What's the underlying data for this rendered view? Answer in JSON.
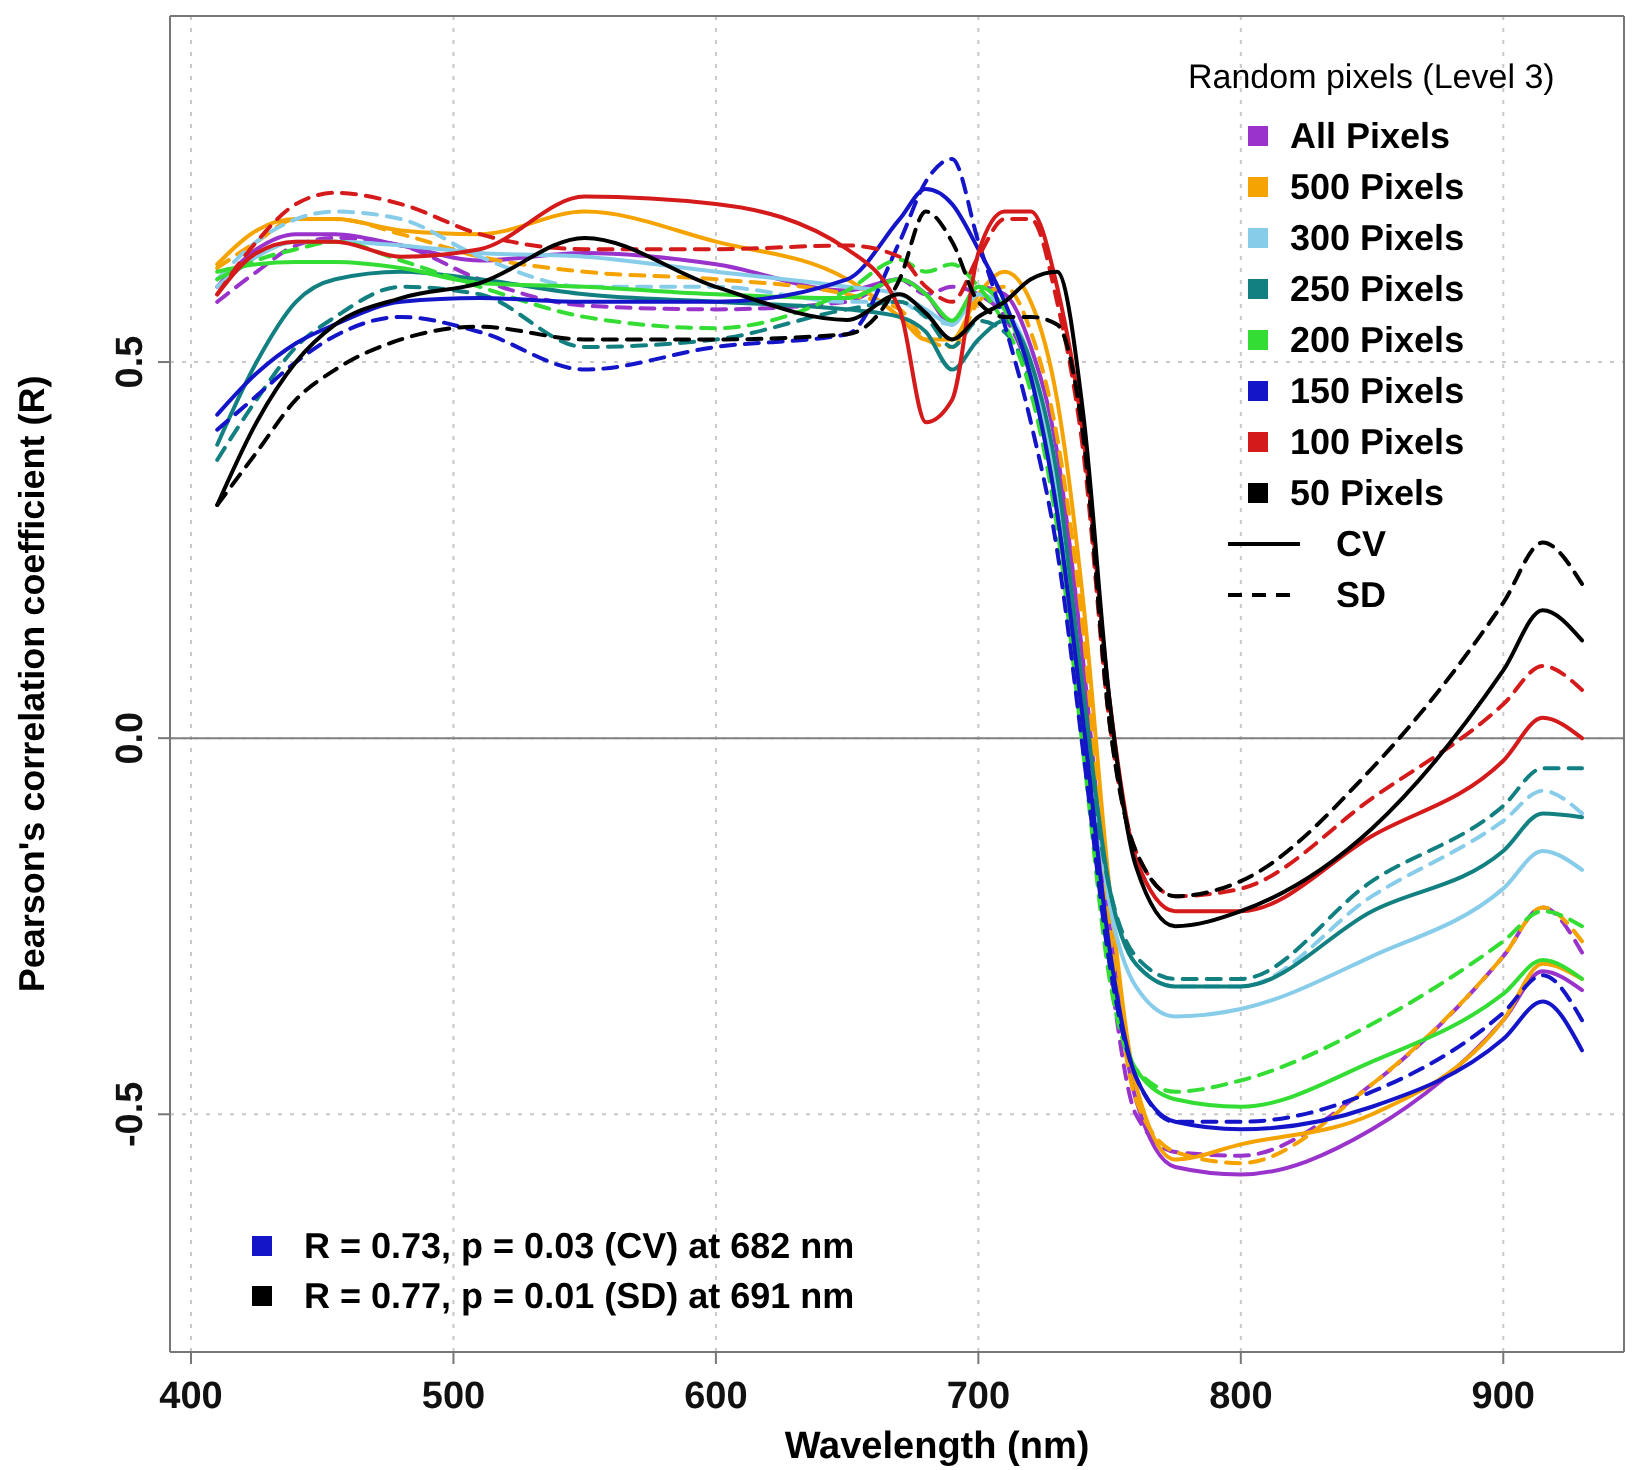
{
  "chart_data": {
    "type": "line",
    "xlabel": "Wavelength (nm)",
    "ylabel": "Pearson's correlation coefficient (R)",
    "legend_title": "Random pixels (Level 3)",
    "legend": "top right",
    "grid": true,
    "marker": "none",
    "xlim": [
      392,
      946
    ],
    "ylim": [
      -0.816,
      0.96
    ],
    "xticks": [
      400,
      500,
      600,
      700,
      800,
      900
    ],
    "yticks": [
      {
        "value": -0.5,
        "label": "-0.5"
      },
      {
        "value": 0,
        "label": "0.0"
      },
      {
        "value": 0.5,
        "label": "0.5"
      }
    ],
    "ref_lines": [
      {
        "axis": "y",
        "value": 0,
        "label": null,
        "color": "#808080",
        "line_style": "solid"
      }
    ],
    "annotations": [
      "CV",
      "SD",
      "R = 0.73, p = 0.03 (CV) at 682 nm",
      "R = 0.77, p = 0.01 (SD) at 691 nm"
    ],
    "x": [
      410,
      425,
      440,
      455,
      480,
      510,
      550,
      600,
      650,
      670,
      680,
      690,
      700,
      710,
      720,
      730,
      740,
      750,
      760,
      775,
      800,
      850,
      900,
      915,
      930
    ],
    "series": [
      {
        "name": "All Pixels",
        "color": "#9933cc",
        "line_style": "solid",
        "values": [
          0.6,
          0.65,
          0.67,
          0.67,
          0.655,
          0.635,
          0.645,
          0.63,
          0.595,
          0.61,
          0.59,
          0.55,
          0.6,
          0.59,
          0.52,
          0.38,
          0.1,
          -0.25,
          -0.48,
          -0.57,
          -0.58,
          -0.52,
          -0.375,
          -0.31,
          -0.335
        ]
      },
      {
        "color": "#9933cc",
        "line_style": "dashed",
        "values": [
          0.58,
          0.62,
          0.655,
          0.665,
          0.655,
          0.61,
          0.575,
          0.57,
          0.58,
          0.61,
          0.59,
          0.6,
          0.59,
          0.56,
          0.48,
          0.32,
          0.05,
          -0.3,
          -0.5,
          -0.55,
          -0.555,
          -0.46,
          -0.29,
          -0.225,
          -0.285
        ]
      },
      {
        "name": "500 Pixels",
        "color": "#f5a300",
        "line_style": "solid",
        "values": [
          0.63,
          0.675,
          0.69,
          0.69,
          0.675,
          0.67,
          0.7,
          0.66,
          0.61,
          0.56,
          0.53,
          0.53,
          0.59,
          0.62,
          0.58,
          0.45,
          0.18,
          -0.2,
          -0.46,
          -0.56,
          -0.54,
          -0.5,
          -0.375,
          -0.3,
          -0.32
        ]
      },
      {
        "color": "#f5a300",
        "line_style": "dashed",
        "values": [
          0.625,
          0.66,
          0.69,
          0.69,
          0.67,
          0.64,
          0.62,
          0.61,
          0.59,
          0.57,
          0.53,
          0.52,
          0.58,
          0.6,
          0.54,
          0.4,
          0.14,
          -0.25,
          -0.48,
          -0.55,
          -0.565,
          -0.46,
          -0.29,
          -0.225,
          -0.27
        ]
      },
      {
        "name": "300 Pixels",
        "color": "#87cdea",
        "line_style": "solid",
        "values": [
          0.6,
          0.64,
          0.66,
          0.66,
          0.655,
          0.645,
          0.64,
          0.62,
          0.6,
          0.59,
          0.57,
          0.55,
          0.59,
          0.57,
          0.5,
          0.33,
          0.05,
          -0.22,
          -0.33,
          -0.37,
          -0.36,
          -0.29,
          -0.2,
          -0.15,
          -0.175
        ]
      },
      {
        "color": "#87cdea",
        "line_style": "dashed",
        "values": [
          0.61,
          0.66,
          0.69,
          0.7,
          0.69,
          0.64,
          0.6,
          0.6,
          0.58,
          0.58,
          0.56,
          0.55,
          0.6,
          0.57,
          0.49,
          0.32,
          0.04,
          -0.2,
          -0.3,
          -0.33,
          -0.33,
          -0.21,
          -0.11,
          -0.07,
          -0.1
        ]
      },
      {
        "name": "250 Pixels",
        "color": "#128080",
        "line_style": "solid",
        "values": [
          0.39,
          0.5,
          0.58,
          0.61,
          0.62,
          0.61,
          0.59,
          0.58,
          0.57,
          0.56,
          0.54,
          0.49,
          0.53,
          0.555,
          0.5,
          0.35,
          0.06,
          -0.2,
          -0.3,
          -0.33,
          -0.33,
          -0.23,
          -0.15,
          -0.1,
          -0.105
        ]
      },
      {
        "color": "#128080",
        "line_style": "dashed",
        "values": [
          0.37,
          0.45,
          0.52,
          0.56,
          0.6,
          0.59,
          0.52,
          0.53,
          0.57,
          0.58,
          0.56,
          0.52,
          0.555,
          0.54,
          0.47,
          0.3,
          0.02,
          -0.2,
          -0.29,
          -0.32,
          -0.32,
          -0.19,
          -0.09,
          -0.04,
          -0.04
        ]
      },
      {
        "name": "200 Pixels",
        "color": "#33dd33",
        "line_style": "solid",
        "values": [
          0.62,
          0.63,
          0.633,
          0.633,
          0.625,
          0.605,
          0.6,
          0.59,
          0.585,
          0.61,
          0.59,
          0.555,
          0.6,
          0.57,
          0.48,
          0.3,
          0.0,
          -0.3,
          -0.44,
          -0.48,
          -0.49,
          -0.43,
          -0.34,
          -0.295,
          -0.32
        ]
      },
      {
        "color": "#33dd33",
        "line_style": "dashed",
        "values": [
          0.61,
          0.635,
          0.65,
          0.66,
          0.635,
          0.6,
          0.56,
          0.545,
          0.595,
          0.636,
          0.62,
          0.63,
          0.6,
          0.55,
          0.46,
          0.28,
          -0.02,
          -0.32,
          -0.44,
          -0.47,
          -0.455,
          -0.38,
          -0.27,
          -0.23,
          -0.25
        ]
      },
      {
        "name": "150 Pixels",
        "color": "#1414c8",
        "line_style": "solid",
        "values": [
          0.43,
          0.485,
          0.525,
          0.55,
          0.58,
          0.585,
          0.58,
          0.58,
          0.61,
          0.69,
          0.73,
          0.71,
          0.65,
          0.58,
          0.48,
          0.3,
          0.02,
          -0.28,
          -0.45,
          -0.51,
          -0.52,
          -0.49,
          -0.4,
          -0.35,
          -0.415
        ]
      },
      {
        "color": "#1414c8",
        "line_style": "dashed",
        "values": [
          0.41,
          0.455,
          0.5,
          0.535,
          0.56,
          0.54,
          0.49,
          0.52,
          0.537,
          0.66,
          0.74,
          0.77,
          0.66,
          0.55,
          0.42,
          0.25,
          -0.02,
          -0.3,
          -0.45,
          -0.51,
          -0.51,
          -0.47,
          -0.365,
          -0.315,
          -0.375
        ]
      },
      {
        "name": "100 Pixels",
        "color": "#d41a1a",
        "line_style": "solid",
        "values": [
          0.59,
          0.645,
          0.66,
          0.66,
          0.64,
          0.65,
          0.72,
          0.71,
          0.65,
          0.57,
          0.42,
          0.45,
          0.645,
          0.7,
          0.7,
          0.6,
          0.4,
          0.05,
          -0.16,
          -0.23,
          -0.23,
          -0.13,
          -0.03,
          0.027,
          0.0
        ]
      },
      {
        "color": "#d41a1a",
        "line_style": "dashed",
        "values": [
          0.59,
          0.66,
          0.71,
          0.725,
          0.71,
          0.67,
          0.65,
          0.65,
          0.655,
          0.64,
          0.6,
          0.58,
          0.64,
          0.69,
          0.69,
          0.58,
          0.38,
          0.02,
          -0.15,
          -0.21,
          -0.2,
          -0.08,
          0.045,
          0.096,
          0.064
        ]
      },
      {
        "name": "50 Pixels",
        "color": "#000000",
        "line_style": "solid",
        "values": [
          0.31,
          0.42,
          0.5,
          0.55,
          0.585,
          0.605,
          0.665,
          0.6,
          0.556,
          0.59,
          0.565,
          0.53,
          0.56,
          0.58,
          0.61,
          0.62,
          0.43,
          0.05,
          -0.17,
          -0.25,
          -0.23,
          -0.12,
          0.09,
          0.17,
          0.13
        ]
      },
      {
        "color": "#000000",
        "line_style": "dashed",
        "values": [
          0.31,
          0.38,
          0.45,
          0.49,
          0.53,
          0.547,
          0.53,
          0.53,
          0.537,
          0.61,
          0.7,
          0.66,
          0.58,
          0.56,
          0.56,
          0.55,
          0.4,
          0.02,
          -0.15,
          -0.21,
          -0.19,
          -0.04,
          0.18,
          0.26,
          0.205
        ]
      }
    ]
  }
}
